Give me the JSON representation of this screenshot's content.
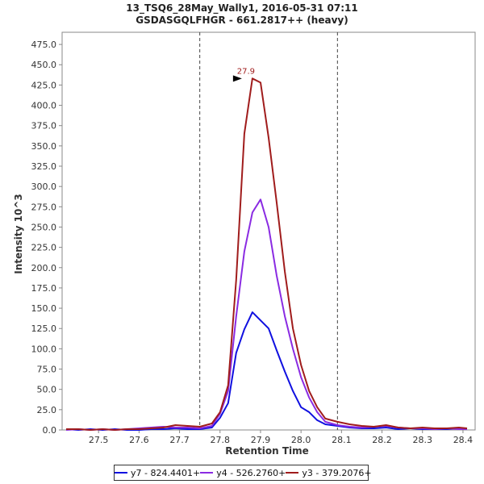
{
  "chart_data": {
    "type": "line",
    "title": "13_TSQ6_28May_Wally1, 2016-05-31 07:11",
    "subtitle": "GSDASGQLFHGR - 661.2817++ (heavy)",
    "xlabel": "Retention Time",
    "ylabel": "Intensity 10^3",
    "xlim": [
      27.41,
      28.43
    ],
    "ylim": [
      0,
      490
    ],
    "xticks": [
      27.5,
      27.6,
      27.7,
      27.8,
      27.9,
      28.0,
      28.1,
      28.2,
      28.3,
      28.4
    ],
    "xtick_labels": [
      "27.5",
      "27.6",
      "27.7",
      "27.8",
      "27.9",
      "28.0",
      "28.1",
      "28.2",
      "28.3",
      "28.4"
    ],
    "yticks": [
      0,
      25,
      50,
      75,
      100,
      125,
      150,
      175,
      200,
      225,
      250,
      275,
      300,
      325,
      350,
      375,
      400,
      425,
      450,
      475
    ],
    "ytick_labels": [
      "0.0",
      "25.0",
      "50.0",
      "75.0",
      "100.0",
      "125.0",
      "150.0",
      "175.0",
      "200.0",
      "225.0",
      "250.0",
      "275.0",
      "300.0",
      "325.0",
      "350.0",
      "375.0",
      "400.0",
      "425.0",
      "450.0",
      "475.0"
    ],
    "grid": false,
    "legend_position": "bottom",
    "boundaries": [
      27.75,
      28.09
    ],
    "peak_annotation": {
      "x": 27.86,
      "y": 433,
      "label": "27.9",
      "color": "#a01c1c"
    },
    "series": [
      {
        "name": "y7 - 824.4401+",
        "color": "#1010e0",
        "x": [
          27.42,
          27.45,
          27.48,
          27.51,
          27.54,
          27.57,
          27.6,
          27.63,
          27.66,
          27.69,
          27.72,
          27.75,
          27.78,
          27.8,
          27.82,
          27.84,
          27.86,
          27.88,
          27.9,
          27.92,
          27.94,
          27.96,
          27.98,
          28.0,
          28.02,
          28.04,
          28.06,
          28.09,
          28.12,
          28.15,
          28.18,
          28.21,
          28.24,
          28.27,
          28.3,
          28.33,
          28.36,
          28.39,
          28.41
        ],
        "y": [
          1,
          0,
          1,
          0,
          1,
          0,
          0,
          1,
          1,
          2,
          1,
          1,
          3,
          15,
          33,
          95,
          124,
          145,
          135,
          125,
          98,
          72,
          48,
          28,
          22,
          12,
          7,
          5,
          3,
          2,
          2,
          3,
          1,
          2,
          1,
          1,
          1,
          2,
          1
        ]
      },
      {
        "name": "y4 - 526.2760+",
        "color": "#8a2be2",
        "x": [
          27.42,
          27.45,
          27.48,
          27.51,
          27.54,
          27.57,
          27.6,
          27.63,
          27.66,
          27.69,
          27.72,
          27.75,
          27.78,
          27.8,
          27.82,
          27.84,
          27.86,
          27.88,
          27.9,
          27.92,
          27.94,
          27.96,
          27.98,
          28.0,
          28.02,
          28.04,
          28.06,
          28.09,
          28.12,
          28.15,
          28.18,
          28.21,
          28.24,
          28.27,
          28.3,
          28.33,
          28.36,
          28.39,
          28.41
        ],
        "y": [
          0,
          1,
          0,
          1,
          0,
          1,
          2,
          3,
          4,
          3,
          3,
          2,
          5,
          20,
          48,
          140,
          220,
          268,
          284,
          250,
          190,
          140,
          100,
          65,
          40,
          22,
          10,
          6,
          4,
          3,
          4,
          5,
          3,
          2,
          2,
          1,
          2,
          1,
          1
        ]
      },
      {
        "name": "y3 - 379.2076+",
        "color": "#a01c1c",
        "x": [
          27.42,
          27.45,
          27.48,
          27.51,
          27.54,
          27.57,
          27.6,
          27.63,
          27.66,
          27.69,
          27.72,
          27.75,
          27.78,
          27.8,
          27.82,
          27.84,
          27.86,
          27.88,
          27.9,
          27.92,
          27.94,
          27.96,
          27.98,
          28.0,
          28.02,
          28.04,
          28.06,
          28.09,
          28.12,
          28.15,
          28.18,
          28.21,
          28.24,
          28.27,
          28.3,
          28.33,
          28.36,
          28.39,
          28.41
        ],
        "y": [
          1,
          1,
          0,
          1,
          0,
          1,
          1,
          2,
          3,
          6,
          5,
          4,
          8,
          22,
          55,
          185,
          365,
          433,
          428,
          360,
          280,
          195,
          125,
          80,
          48,
          28,
          14,
          10,
          7,
          5,
          4,
          6,
          3,
          2,
          3,
          2,
          2,
          3,
          2
        ]
      }
    ]
  }
}
